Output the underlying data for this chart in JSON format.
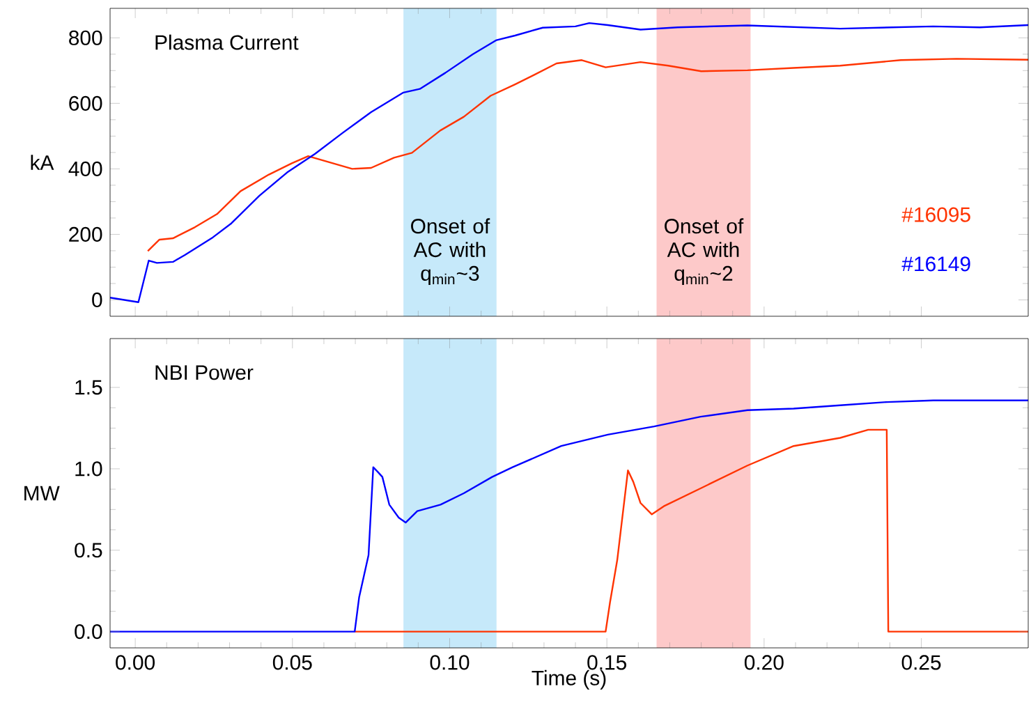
{
  "chart_data": [
    {
      "type": "line",
      "title": "Plasma Current",
      "ylabel": "kA",
      "xlim": [
        -0.008,
        0.284
      ],
      "xticks": [
        0,
        0.05,
        0.1,
        0.15,
        0.2,
        0.25
      ],
      "ylim": [
        -50,
        890
      ],
      "yticks": [
        0,
        200,
        400,
        600,
        800
      ],
      "tick_labels": "y",
      "legend": "right",
      "bands": [
        {
          "axis": "x",
          "from": 0.0853,
          "to": 0.1149,
          "label": "Onset of AC with q$_{min}$~3",
          "color": "#c6e9fa"
        },
        {
          "axis": "x",
          "from": 0.1658,
          "to": 0.1957,
          "label": "Onset of AC with q$_{min}$~2",
          "color": "#fdc9c9"
        }
      ],
      "series": [
        {
          "name": "#16095",
          "color": "#ff3300",
          "x": [
            0.004,
            0.0077,
            0.012,
            0.019,
            0.026,
            0.0335,
            0.0424,
            0.0498,
            0.055,
            0.06,
            0.069,
            0.075,
            0.0823,
            0.088,
            0.097,
            0.1045,
            0.113,
            0.1208,
            0.1267,
            0.134,
            0.142,
            0.1496,
            0.1607,
            0.1695,
            0.18,
            0.1947,
            0.2094,
            0.2242,
            0.2435,
            0.2612,
            0.284
          ],
          "values": [
            149,
            184,
            188,
            222,
            262,
            332,
            382,
            417,
            439,
            425,
            400,
            403,
            434,
            449,
            517,
            559,
            623,
            658,
            686,
            722,
            732,
            710,
            726,
            715,
            698,
            701,
            708,
            715,
            732,
            736,
            733
          ]
        },
        {
          "name": "#16149",
          "color": "#0000ff",
          "x": [
            -0.008,
            0.001,
            0.0043,
            0.0069,
            0.012,
            0.0158,
            0.0247,
            0.0306,
            0.0395,
            0.0483,
            0.0572,
            0.066,
            0.075,
            0.0853,
            0.0905,
            0.0986,
            0.1074,
            0.1149,
            0.1208,
            0.1296,
            0.14,
            0.1444,
            0.1503,
            0.1607,
            0.1725,
            0.1947,
            0.2242,
            0.2538,
            0.2686,
            0.284
          ],
          "values": [
            7,
            -7,
            120,
            113,
            116,
            137,
            191,
            234,
            318,
            389,
            446,
            510,
            573,
            633,
            644,
            693,
            750,
            793,
            807,
            831,
            835,
            845,
            839,
            825,
            832,
            838,
            828,
            835,
            832,
            839
          ]
        }
      ]
    },
    {
      "type": "line",
      "title": "NBI Power",
      "xlabel": "Time (s)",
      "ylabel": "MW",
      "xlim": [
        -0.008,
        0.284
      ],
      "xticks": [
        {
          "value": 0,
          "label": "0.00"
        },
        {
          "value": 0.05,
          "label": "0.05"
        },
        {
          "value": 0.1,
          "label": "0.10"
        },
        {
          "value": 0.15,
          "label": "0.15"
        },
        {
          "value": 0.2,
          "label": "0.20"
        },
        {
          "value": 0.25,
          "label": "0.25"
        }
      ],
      "ylim": [
        -0.1,
        1.8
      ],
      "yticks": [
        {
          "value": 0,
          "label": "0.0"
        },
        {
          "value": 0.5,
          "label": "0.5"
        },
        {
          "value": 1,
          "label": "1.0"
        },
        {
          "value": 1.5,
          "label": "1.5"
        }
      ],
      "bands": [
        {
          "axis": "x",
          "from": 0.0853,
          "to": 0.1149,
          "color": "#c6e9fa"
        },
        {
          "axis": "x",
          "from": 0.1658,
          "to": 0.1957,
          "color": "#fdc9c9"
        }
      ],
      "series": [
        {
          "color": "#ff3300",
          "x": [
            0.0698,
            0.1496,
            0.151,
            0.1533,
            0.1567,
            0.1584,
            0.1607,
            0.1643,
            0.1681,
            0.1798,
            0.1947,
            0.2094,
            0.2242,
            0.2331,
            0.239,
            0.2395,
            0.284
          ],
          "values": [
            0,
            0,
            0.18,
            0.44,
            0.99,
            0.92,
            0.79,
            0.72,
            0.77,
            0.88,
            1.02,
            1.14,
            1.19,
            1.24,
            1.24,
            0,
            0
          ]
        },
        {
          "color": "#0000ff",
          "x": [
            -0.008,
            0.0698,
            0.0712,
            0.0742,
            0.0757,
            0.0772,
            0.0786,
            0.0808,
            0.0838,
            0.086,
            0.0897,
            0.0971,
            0.1045,
            0.1135,
            0.12,
            0.1355,
            0.1503,
            0.165,
            0.1798,
            0.1947,
            0.2094,
            0.2242,
            0.239,
            0.2538,
            0.2686,
            0.284
          ],
          "values": [
            0,
            0,
            0.21,
            0.47,
            1.01,
            0.98,
            0.95,
            0.78,
            0.7,
            0.67,
            0.74,
            0.78,
            0.85,
            0.95,
            1.01,
            1.14,
            1.21,
            1.26,
            1.32,
            1.36,
            1.37,
            1.39,
            1.41,
            1.42,
            1.42,
            1.42
          ]
        }
      ]
    }
  ]
}
